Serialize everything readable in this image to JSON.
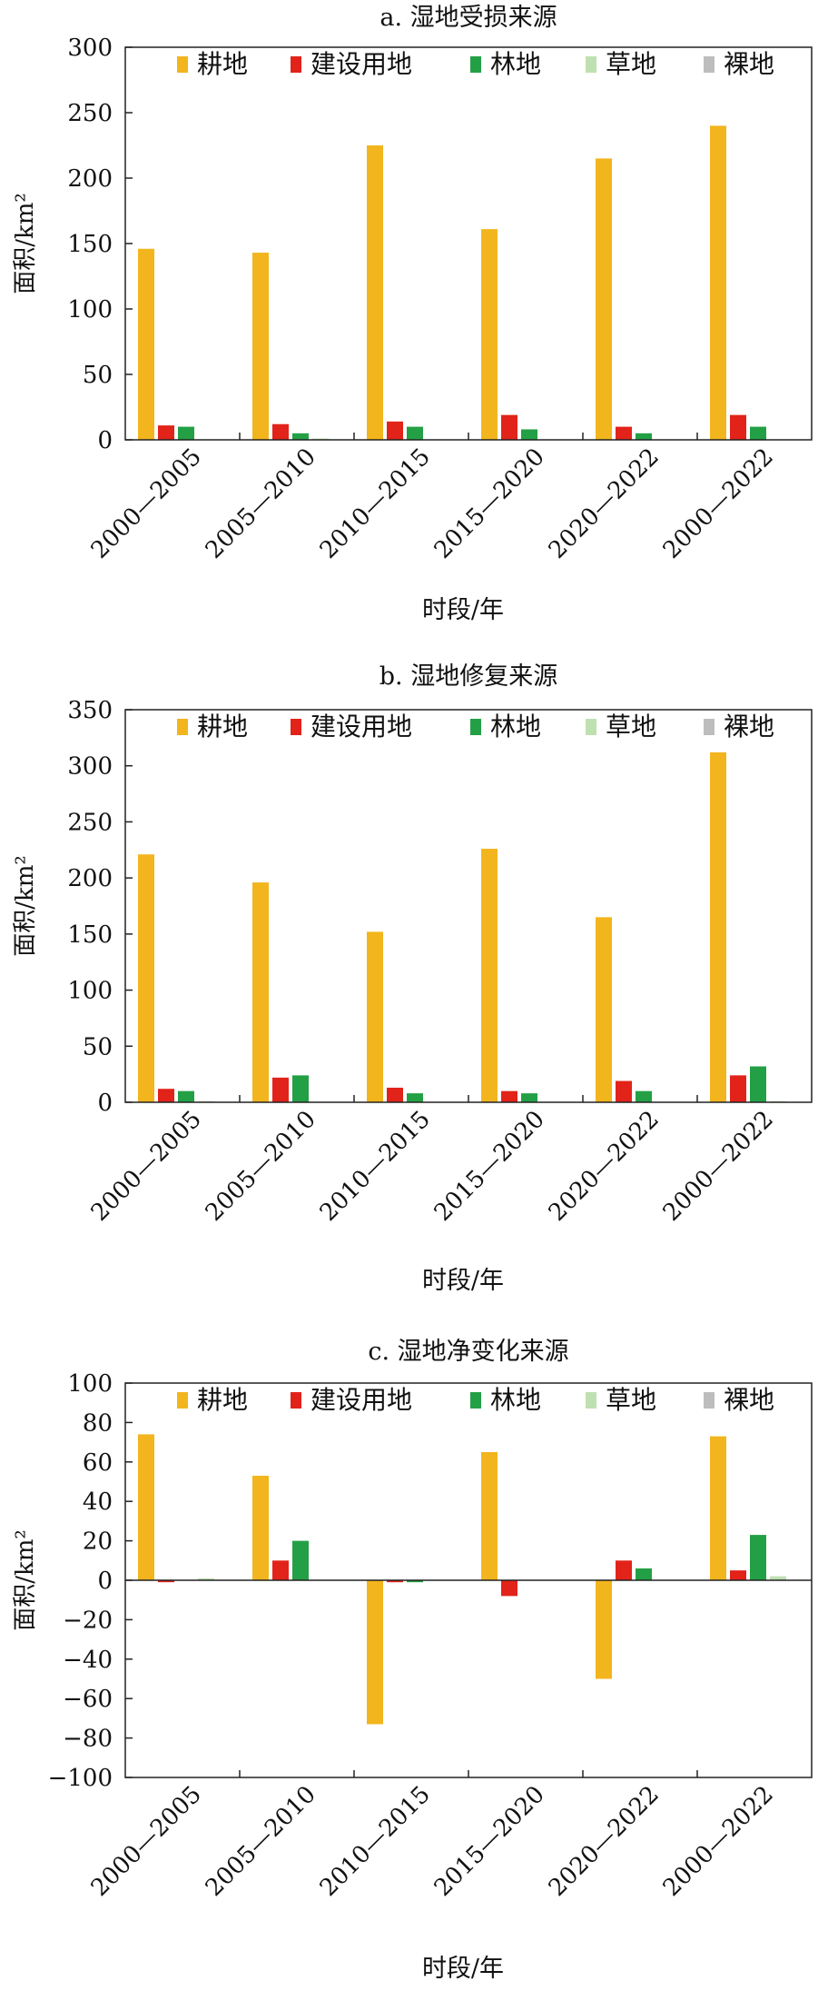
{
  "colors": {
    "耕地": "#f2b51d",
    "建设用地": "#e2231a",
    "林地": "#23a045",
    "草地": "#bfe0b1",
    "裸地": "#bdbdbd"
  },
  "chart_data": [
    {
      "type": "bar",
      "title": "a. 湿地受损来源",
      "xlabel": "时段/年",
      "ylabel": "面积/km²",
      "ylim": [
        0,
        300
      ],
      "yticks": [
        0,
        50,
        100,
        150,
        200,
        250,
        300
      ],
      "categories": [
        "2000—2005",
        "2005—2010",
        "2010—2015",
        "2015—2020",
        "2020—2022",
        "2000—2022"
      ],
      "legend": "top",
      "series": [
        {
          "name": "耕地",
          "values": [
            146,
            143,
            225,
            161,
            215,
            240
          ]
        },
        {
          "name": "建设用地",
          "values": [
            11,
            12,
            14,
            19,
            10,
            19
          ]
        },
        {
          "name": "林地",
          "values": [
            10,
            5,
            10,
            8,
            5,
            10
          ]
        },
        {
          "name": "草地",
          "values": [
            0,
            1,
            0,
            0,
            0,
            0
          ]
        },
        {
          "name": "裸地",
          "values": [
            0,
            0,
            0,
            0,
            0,
            0
          ]
        }
      ]
    },
    {
      "type": "bar",
      "title": "b. 湿地修复来源",
      "xlabel": "时段/年",
      "ylabel": "面积/km²",
      "ylim": [
        0,
        350
      ],
      "yticks": [
        0,
        50,
        100,
        150,
        200,
        250,
        300,
        350
      ],
      "categories": [
        "2000—2005",
        "2005—2010",
        "2010—2015",
        "2015—2020",
        "2020—2022",
        "2000—2022"
      ],
      "legend": "top",
      "series": [
        {
          "name": "耕地",
          "values": [
            221,
            196,
            152,
            226,
            165,
            312
          ]
        },
        {
          "name": "建设用地",
          "values": [
            12,
            22,
            13,
            10,
            19,
            24
          ]
        },
        {
          "name": "林地",
          "values": [
            10,
            24,
            8,
            8,
            10,
            32
          ]
        },
        {
          "name": "草地",
          "values": [
            1,
            0,
            0,
            0,
            0,
            1
          ]
        },
        {
          "name": "裸地",
          "values": [
            0,
            0,
            0,
            0,
            0,
            0
          ]
        }
      ]
    },
    {
      "type": "bar",
      "title": "c. 湿地净变化来源",
      "xlabel": "时段/年",
      "ylabel": "面积/km²",
      "ylim": [
        -100,
        100
      ],
      "yticks": [
        -100,
        -80,
        -60,
        -40,
        -20,
        0,
        20,
        40,
        60,
        80,
        100
      ],
      "categories": [
        "2000—2005",
        "2005—2010",
        "2010—2015",
        "2015—2020",
        "2020—2022",
        "2000—2022"
      ],
      "legend": "top",
      "series": [
        {
          "name": "耕地",
          "values": [
            74,
            53,
            -73,
            65,
            -50,
            73
          ]
        },
        {
          "name": "建设用地",
          "values": [
            -1,
            10,
            -1,
            -8,
            10,
            5
          ]
        },
        {
          "name": "林地",
          "values": [
            0,
            20,
            -1,
            0,
            6,
            23
          ]
        },
        {
          "name": "草地",
          "values": [
            1,
            0,
            0,
            0,
            0,
            2
          ]
        },
        {
          "name": "裸地",
          "values": [
            0,
            0,
            0,
            0,
            0,
            0
          ]
        }
      ]
    }
  ]
}
